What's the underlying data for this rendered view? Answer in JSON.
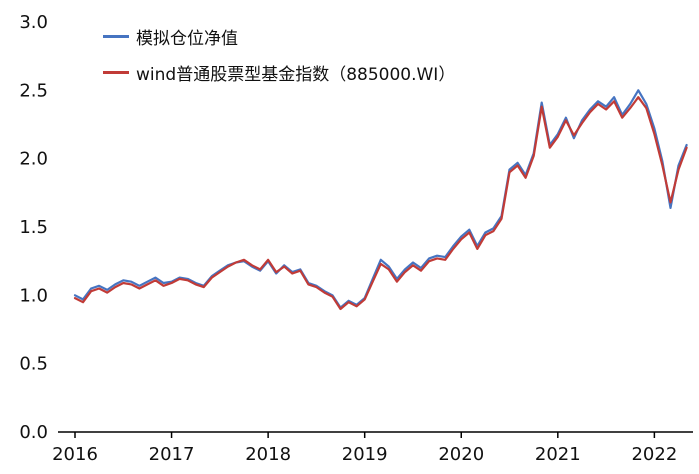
{
  "chart_data": {
    "type": "line",
    "title": "",
    "xlabel": "",
    "ylabel": "",
    "grid": false,
    "legend_position": "top-left",
    "xlim": [
      2016,
      2022.4
    ],
    "ylim": [
      0,
      3.0
    ],
    "x_start": 2016,
    "x_step": 0.083333,
    "xticks": [
      2016,
      2017,
      2018,
      2019,
      2020,
      2021,
      2022
    ],
    "xtick_labels": [
      "2016",
      "2017",
      "2018",
      "2019",
      "2020",
      "2021",
      "2022"
    ],
    "yticks": [
      0,
      0.5,
      1.0,
      1.5,
      2.0,
      2.5,
      3.0
    ],
    "ytick_labels": [
      "0.0",
      "0.5",
      "1.0",
      "1.5",
      "2.0",
      "2.5",
      "3.0"
    ],
    "axis_color": "#000000",
    "tick_text_color": "#111111",
    "series": [
      {
        "name": "模拟仓位净值",
        "color": "#4674C1",
        "values": [
          1.0,
          0.97,
          1.05,
          1.07,
          1.04,
          1.08,
          1.11,
          1.1,
          1.07,
          1.1,
          1.13,
          1.09,
          1.1,
          1.13,
          1.12,
          1.09,
          1.07,
          1.14,
          1.18,
          1.22,
          1.24,
          1.25,
          1.21,
          1.18,
          1.25,
          1.16,
          1.22,
          1.17,
          1.19,
          1.09,
          1.07,
          1.03,
          1.0,
          0.91,
          0.96,
          0.93,
          0.98,
          1.12,
          1.26,
          1.21,
          1.12,
          1.19,
          1.24,
          1.2,
          1.27,
          1.29,
          1.28,
          1.36,
          1.43,
          1.48,
          1.36,
          1.46,
          1.49,
          1.58,
          1.92,
          1.97,
          1.88,
          2.04,
          2.41,
          2.1,
          2.18,
          2.3,
          2.15,
          2.28,
          2.36,
          2.42,
          2.38,
          2.45,
          2.32,
          2.4,
          2.5,
          2.4,
          2.22,
          1.98,
          1.64,
          1.95,
          2.1
        ]
      },
      {
        "name": "wind普通股票型基金指数（885000.WI）",
        "color": "#C13B37",
        "values": [
          0.98,
          0.95,
          1.03,
          1.05,
          1.02,
          1.06,
          1.09,
          1.08,
          1.05,
          1.08,
          1.11,
          1.07,
          1.09,
          1.12,
          1.11,
          1.08,
          1.06,
          1.13,
          1.17,
          1.21,
          1.24,
          1.26,
          1.22,
          1.19,
          1.26,
          1.17,
          1.21,
          1.16,
          1.18,
          1.08,
          1.06,
          1.02,
          0.99,
          0.9,
          0.95,
          0.92,
          0.97,
          1.1,
          1.23,
          1.19,
          1.1,
          1.17,
          1.22,
          1.18,
          1.25,
          1.27,
          1.26,
          1.34,
          1.41,
          1.46,
          1.34,
          1.44,
          1.47,
          1.56,
          1.9,
          1.95,
          1.86,
          2.02,
          2.38,
          2.08,
          2.16,
          2.28,
          2.17,
          2.26,
          2.34,
          2.4,
          2.36,
          2.42,
          2.3,
          2.37,
          2.45,
          2.37,
          2.18,
          1.95,
          1.68,
          1.92,
          2.08
        ]
      }
    ]
  }
}
